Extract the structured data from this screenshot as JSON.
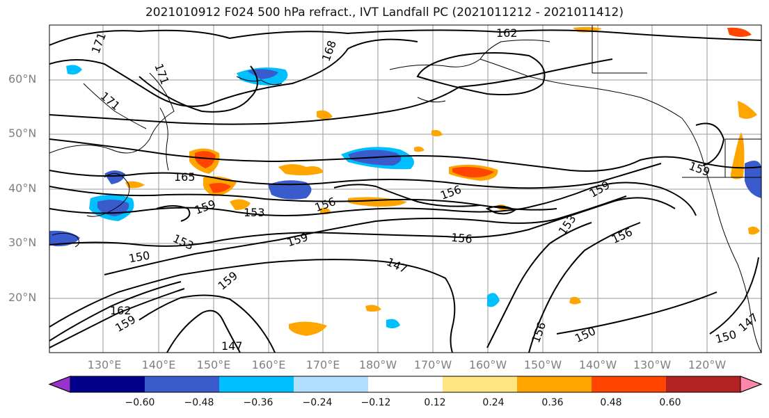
{
  "title": "2021010912 F024 500 hPa refract., IVT Landfall PC (2021011212 - 2021011412)",
  "lat_labels": [
    "60°N",
    "50°N",
    "40°N",
    "30°N",
    "20°N"
  ],
  "lon_labels": [
    "130°E",
    "140°E",
    "150°E",
    "160°E",
    "170°E",
    "180°W",
    "170°W",
    "160°W",
    "150°W",
    "140°W",
    "130°W",
    "120°W"
  ],
  "contour_labels": [
    "162",
    "168",
    "171",
    "171",
    "171",
    "165",
    "159",
    "153",
    "156",
    "156",
    "159",
    "153",
    "150",
    "159",
    "156",
    "147",
    "153",
    "156",
    "159",
    "162",
    "159",
    "147",
    "150",
    "150",
    "147",
    "159",
    "156"
  ],
  "colorbar": {
    "ticks": [
      "−0.60",
      "−0.48",
      "−0.36",
      "−0.24",
      "−0.12",
      "0.12",
      "0.24",
      "0.36",
      "0.48",
      "0.60"
    ],
    "colors": [
      "#9932CC",
      "#00008B",
      "#3A5BCB",
      "#00BFFF",
      "#B0E0FF",
      "#FFFFFF",
      "#FFE680",
      "#FFA500",
      "#FF4500",
      "#B22222",
      "#FF88AA"
    ]
  }
}
